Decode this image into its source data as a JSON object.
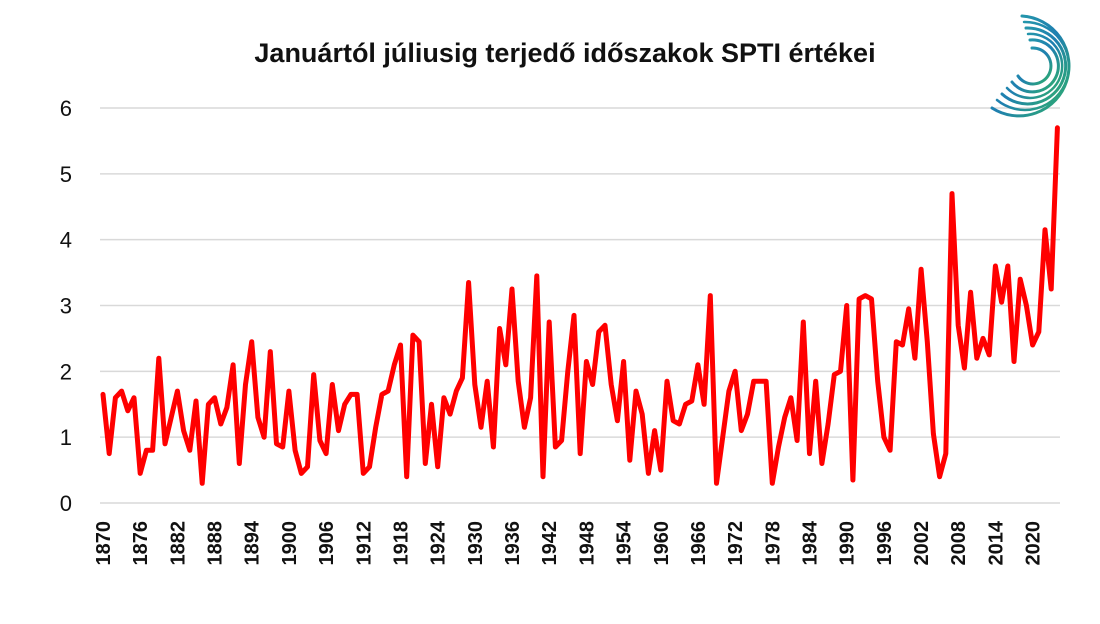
{
  "chart_data": {
    "type": "line",
    "title": "Januártól júliusig terjedő időszakok SPTI értékei",
    "xlabel": "",
    "ylabel": "",
    "ylim": [
      0,
      6
    ],
    "yticks": [
      0,
      1,
      2,
      3,
      4,
      5,
      6
    ],
    "xticks": [
      1870,
      1876,
      1882,
      1888,
      1894,
      1900,
      1906,
      1912,
      1918,
      1924,
      1930,
      1936,
      1942,
      1948,
      1954,
      1960,
      1966,
      1972,
      1978,
      1984,
      1990,
      1996,
      2002,
      2008,
      2014,
      2020
    ],
    "grid": "horizontal",
    "line_color": "#ff0000",
    "grid_color": "#d9d9d9",
    "series": [
      {
        "x_start": 1870,
        "x_end": 2022,
        "values": [
          1.65,
          0.75,
          1.6,
          1.7,
          1.4,
          1.6,
          0.45,
          0.8,
          0.8,
          2.2,
          0.9,
          1.3,
          1.7,
          1.1,
          0.8,
          1.55,
          0.3,
          1.5,
          1.6,
          1.2,
          1.45,
          2.1,
          0.6,
          1.8,
          2.45,
          1.3,
          1.0,
          2.3,
          0.9,
          0.85,
          1.7,
          0.8,
          0.45,
          0.55,
          1.95,
          0.95,
          0.75,
          1.8,
          1.1,
          1.5,
          1.65,
          1.65,
          0.45,
          0.55,
          1.15,
          1.65,
          1.7,
          2.1,
          2.4,
          0.4,
          2.55,
          2.45,
          0.6,
          1.5,
          0.55,
          1.6,
          1.35,
          1.7,
          1.9,
          3.35,
          1.8,
          1.15,
          1.85,
          0.85,
          2.65,
          2.1,
          3.25,
          1.85,
          1.15,
          1.6,
          3.45,
          0.4,
          2.75,
          0.85,
          0.95,
          2.0,
          2.85,
          0.75,
          2.15,
          1.8,
          2.6,
          2.7,
          1.8,
          1.25,
          2.15,
          0.65,
          1.7,
          1.35,
          0.45,
          1.1,
          0.5,
          1.85,
          1.25,
          1.2,
          1.5,
          1.55,
          2.1,
          1.5,
          3.15,
          0.3,
          1.0,
          1.7,
          2.0,
          1.1,
          1.35,
          1.85,
          1.85,
          1.85,
          0.3,
          0.85,
          1.3,
          1.6,
          0.95,
          2.75,
          0.75,
          1.85,
          0.6,
          1.2,
          1.95,
          2.0,
          3.0,
          0.35,
          3.1,
          3.15,
          3.1,
          1.85,
          1.0,
          0.8,
          2.45,
          2.4,
          2.95,
          2.2,
          3.55,
          2.45,
          1.05,
          0.4,
          0.75,
          4.7,
          2.7,
          2.05,
          3.2,
          2.2,
          2.5,
          2.25,
          3.6,
          3.05,
          3.6,
          2.15,
          3.4,
          3.0,
          2.4,
          2.6,
          4.15,
          3.25,
          5.7
        ]
      }
    ]
  }
}
